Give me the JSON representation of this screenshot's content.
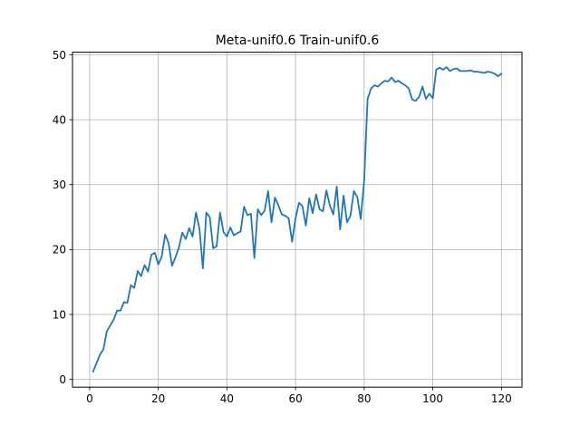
{
  "chart_data": {
    "type": "line",
    "title": "Meta-unif0.6 Train-unif0.6",
    "xlabel": "",
    "ylabel": "",
    "xlim": [
      -5,
      126
    ],
    "ylim": [
      -1.2,
      50.4
    ],
    "xticks": [
      0,
      20,
      40,
      60,
      80,
      100,
      120
    ],
    "yticks": [
      0,
      10,
      20,
      30,
      40,
      50
    ],
    "grid": true,
    "color": "#1f77b4",
    "series": [
      {
        "x": [
          1,
          2,
          3,
          4,
          5,
          6,
          7,
          8,
          9,
          10,
          11,
          12,
          13,
          14,
          15,
          16,
          17,
          18,
          19,
          20,
          21,
          22,
          23,
          24,
          25,
          26,
          27,
          28,
          29,
          30,
          31,
          32,
          33,
          34,
          35,
          36,
          37,
          38,
          39,
          40,
          41,
          42,
          43,
          44,
          45,
          46,
          47,
          48,
          49,
          50,
          51,
          52,
          53,
          54,
          55,
          56,
          57,
          58,
          59,
          60,
          61,
          62,
          63,
          64,
          65,
          66,
          67,
          68,
          69,
          70,
          71,
          72,
          73,
          74,
          75,
          76,
          77,
          78,
          79,
          80,
          81,
          82,
          83,
          84,
          85,
          86,
          87,
          88,
          89,
          90,
          91,
          92,
          93,
          94,
          95,
          96,
          97,
          98,
          99,
          100,
          101,
          102,
          103,
          104,
          105,
          106,
          107,
          108,
          109,
          110,
          111,
          112,
          113,
          114,
          115,
          116,
          117,
          118,
          119,
          120
        ],
        "values": [
          1.2,
          2.5,
          3.8,
          4.6,
          7.4,
          8.3,
          9.2,
          10.6,
          10.6,
          11.9,
          11.8,
          14.5,
          14.1,
          16.7,
          15.9,
          17.6,
          16.6,
          19.2,
          19.5,
          17.7,
          18.9,
          22.3,
          21.0,
          17.5,
          18.8,
          20.3,
          22.6,
          21.6,
          23.3,
          22.0,
          25.7,
          23.2,
          17.1,
          25.7,
          25.0,
          20.2,
          20.5,
          25.7,
          22.7,
          22.0,
          23.4,
          22.2,
          22.5,
          22.8,
          26.6,
          25.3,
          25.5,
          18.7,
          26.2,
          25.3,
          26.0,
          29.0,
          24.2,
          28.0,
          26.8,
          25.4,
          25.2,
          24.8,
          21.2,
          24.8,
          27.2,
          26.7,
          23.7,
          27.9,
          25.6,
          28.5,
          26.2,
          25.9,
          29.1,
          26.8,
          25.4,
          29.7,
          23.1,
          28.3,
          24.2,
          25.2,
          29.0,
          28.1,
          24.7,
          30.6,
          43.2,
          44.8,
          45.3,
          45.1,
          45.6,
          46.0,
          45.9,
          46.5,
          45.8,
          46.0,
          45.6,
          45.3,
          44.8,
          43.1,
          42.9,
          43.5,
          45.1,
          43.2,
          44.0,
          43.3,
          47.7,
          48.0,
          47.7,
          48.1,
          47.5,
          47.8,
          47.9,
          47.5,
          47.5,
          47.5,
          47.6,
          47.4,
          47.4,
          47.3,
          47.2,
          47.4,
          47.3,
          47.1,
          46.7,
          47.1
        ]
      }
    ]
  }
}
